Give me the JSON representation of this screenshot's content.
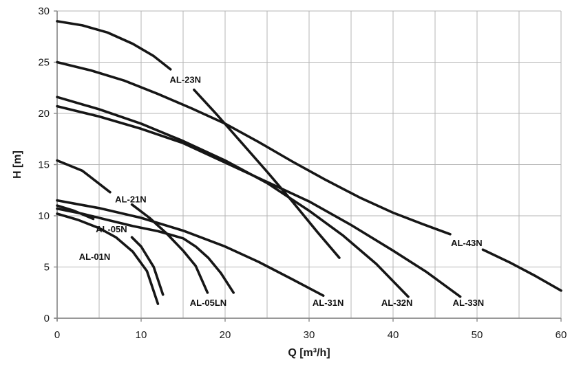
{
  "chart_data": {
    "type": "line",
    "title": "",
    "xlabel": "Q [m³/h]",
    "ylabel": "H [m]",
    "xlim": [
      0,
      60
    ],
    "ylim": [
      0,
      30
    ],
    "x_ticks": [
      0,
      10,
      20,
      30,
      40,
      50,
      60
    ],
    "y_ticks": [
      0,
      5,
      10,
      15,
      20,
      25,
      30
    ],
    "grid": true,
    "grid_step": 5,
    "legend_position": "inline-labels",
    "series": [
      {
        "name": "AL-23N",
        "label_q": 13.4,
        "label_h": 23.0,
        "segments": [
          [
            [
              0,
              29
            ],
            [
              3,
              28.6
            ],
            [
              6,
              27.9
            ],
            [
              9,
              26.8
            ],
            [
              11.5,
              25.6
            ],
            [
              13.5,
              24.3
            ]
          ],
          [
            [
              16.3,
              22.3
            ],
            [
              19,
              19.9
            ],
            [
              22,
              17.1
            ],
            [
              25,
              14.3
            ],
            [
              28,
              11.4
            ],
            [
              31,
              8.4
            ],
            [
              33.6,
              5.9
            ]
          ]
        ]
      },
      {
        "name": "AL-43N",
        "label_q": 46.9,
        "label_h": 7.05,
        "segments": [
          [
            [
              0,
              25
            ],
            [
              4,
              24.2
            ],
            [
              8,
              23.2
            ],
            [
              12,
              21.9
            ],
            [
              16,
              20.5
            ],
            [
              20,
              19.0
            ],
            [
              24,
              17.2
            ],
            [
              28,
              15.3
            ],
            [
              32,
              13.5
            ],
            [
              36,
              11.8
            ],
            [
              40,
              10.3
            ],
            [
              43.5,
              9.2
            ],
            [
              46.8,
              8.2
            ]
          ],
          [
            [
              50.7,
              6.7
            ],
            [
              54,
              5.4
            ],
            [
              57,
              4.1
            ],
            [
              60,
              2.7
            ]
          ]
        ]
      },
      {
        "name": "AL-32N",
        "label_q": 38.6,
        "label_h": 1.2,
        "segments": [
          [
            [
              0,
              21.6
            ],
            [
              5,
              20.4
            ],
            [
              10,
              19.0
            ],
            [
              15,
              17.3
            ],
            [
              20,
              15.4
            ],
            [
              25,
              13.2
            ],
            [
              30,
              10.5
            ],
            [
              34,
              8.1
            ],
            [
              38,
              5.3
            ],
            [
              41.8,
              2.1
            ]
          ]
        ]
      },
      {
        "name": "AL-33N",
        "label_q": 47.1,
        "label_h": 1.2,
        "segments": [
          [
            [
              0,
              20.7
            ],
            [
              5,
              19.7
            ],
            [
              10,
              18.5
            ],
            [
              15,
              17.1
            ],
            [
              20,
              15.2
            ],
            [
              25,
              13.3
            ],
            [
              30,
              11.4
            ],
            [
              35,
              9.1
            ],
            [
              40,
              6.6
            ],
            [
              44,
              4.5
            ],
            [
              48,
              2.1
            ]
          ]
        ]
      },
      {
        "name": "AL-21N",
        "label_q": 6.9,
        "label_h": 11.3,
        "segments": [
          [
            [
              0,
              15.4
            ],
            [
              3,
              14.4
            ],
            [
              6.3,
              12.3
            ]
          ],
          [
            [
              8.9,
              11.1
            ],
            [
              11,
              9.8
            ],
            [
              13,
              8.3
            ],
            [
              15,
              6.6
            ],
            [
              16.5,
              5.1
            ],
            [
              17.9,
              2.5
            ]
          ]
        ]
      },
      {
        "name": "AL-31N",
        "label_q": 30.4,
        "label_h": 1.2,
        "segments": [
          [
            [
              0,
              11.5
            ],
            [
              5,
              10.75
            ],
            [
              10,
              9.8
            ],
            [
              15,
              8.55
            ],
            [
              20,
              7.0
            ],
            [
              24,
              5.5
            ],
            [
              28,
              3.8
            ],
            [
              31.7,
              2.2
            ]
          ]
        ]
      },
      {
        "name": "AL-05LN",
        "label_q": 15.8,
        "label_h": 1.2,
        "segments": [
          [
            [
              0,
              10.7
            ],
            [
              3,
              10.2
            ],
            [
              6,
              9.6
            ],
            [
              9,
              9.0
            ],
            [
              12,
              8.5
            ],
            [
              15,
              7.8
            ],
            [
              16.5,
              7.0
            ],
            [
              18,
              5.9
            ],
            [
              19.5,
              4.4
            ],
            [
              21,
              2.5
            ]
          ]
        ]
      },
      {
        "name": "AL-05N",
        "label_q": 4.6,
        "label_h": 8.4,
        "segments": [
          [
            [
              0,
              11.0
            ],
            [
              2,
              10.5
            ],
            [
              4.3,
              9.7
            ]
          ],
          [
            [
              8.9,
              7.9
            ],
            [
              10,
              7.0
            ],
            [
              11.5,
              5.0
            ],
            [
              12.6,
              2.3
            ]
          ]
        ]
      },
      {
        "name": "AL-01N",
        "label_q": 2.6,
        "label_h": 5.7,
        "segments": [
          [
            [
              0,
              10.2
            ],
            [
              2.5,
              9.6
            ],
            [
              5,
              8.8
            ],
            [
              7,
              7.9
            ],
            [
              9,
              6.5
            ],
            [
              10.7,
              4.6
            ],
            [
              12.0,
              1.4
            ]
          ]
        ]
      }
    ]
  },
  "colors": {
    "background": "#ffffff",
    "curve": "#161616",
    "grid": "#b4b4b4",
    "axis": "#8a8a8a",
    "tick_text": "#1a1a1a",
    "label_text": "#111111"
  }
}
